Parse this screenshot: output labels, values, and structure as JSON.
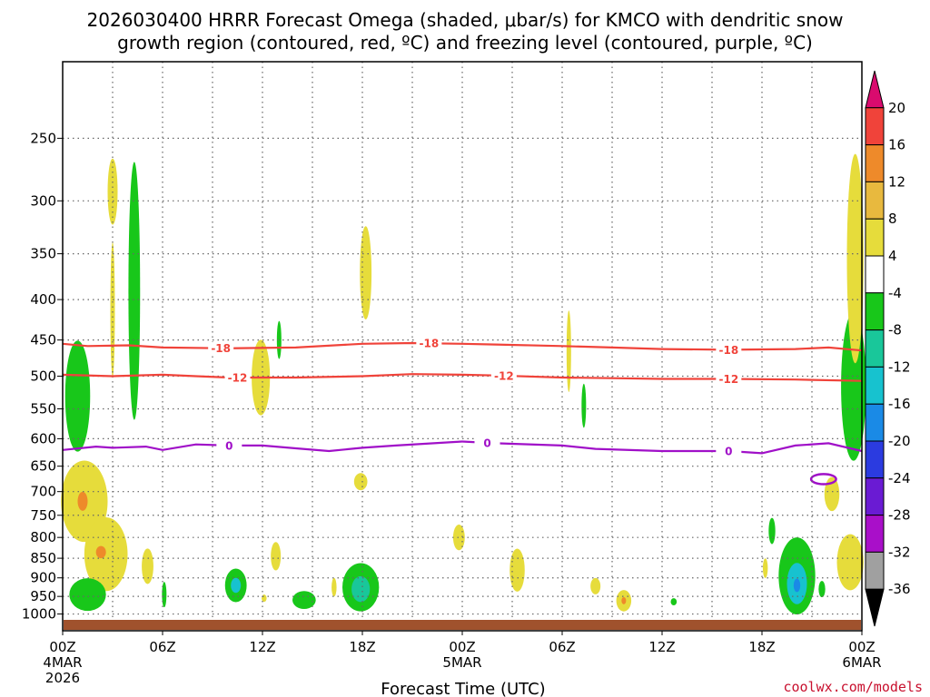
{
  "chart_data": {
    "type": "heatmap",
    "title_line1": "2026030400 HRRR Forecast Omega (shaded, μbar/s) for KMCO with dendritic snow",
    "title_line2": "growth region (contoured, red, ºC) and freezing level (contoured, purple, ºC)",
    "xlabel": "Forecast Time (UTC)",
    "credit": "coolwx.com/models",
    "x_range_hours": [
      0,
      48
    ],
    "y_range_hpa": [
      1050,
      200
    ],
    "y_ticks": [
      250,
      300,
      350,
      400,
      450,
      500,
      550,
      600,
      650,
      700,
      750,
      800,
      850,
      900,
      950,
      1000
    ],
    "x_ticks": [
      {
        "hour": 0,
        "label": "00Z",
        "sub1": "4MAR",
        "sub2": "2026"
      },
      {
        "hour": 6,
        "label": "06Z"
      },
      {
        "hour": 12,
        "label": "12Z"
      },
      {
        "hour": 18,
        "label": "18Z"
      },
      {
        "hour": 24,
        "label": "00Z",
        "sub1": "5MAR"
      },
      {
        "hour": 30,
        "label": "06Z"
      },
      {
        "hour": 36,
        "label": "12Z"
      },
      {
        "hour": 42,
        "label": "18Z"
      },
      {
        "hour": 48,
        "label": "00Z",
        "sub1": "6MAR"
      }
    ],
    "colorbar": {
      "labels": [
        "20",
        "16",
        "12",
        "8",
        "4",
        "-4",
        "-8",
        "-12",
        "-16",
        "-20",
        "-24",
        "-28",
        "-32",
        "-36"
      ],
      "colors": [
        "#d90b6e",
        "#f0433a",
        "#ee8a2a",
        "#e8b93e",
        "#e6dc3b",
        "#ffffff",
        "#18c71a",
        "#19c79a",
        "#17c2cf",
        "#1a8ae6",
        "#2b3be0",
        "#6a1bd3",
        "#a90fc9",
        "#a0a0a0",
        "#000000"
      ]
    },
    "contours": [
      {
        "name": "dgz-18",
        "label": "-18",
        "color": "#f0433a",
        "points": [
          [
            0,
            455
          ],
          [
            1.5,
            458
          ],
          [
            4,
            457
          ],
          [
            6,
            460
          ],
          [
            10,
            461
          ],
          [
            14,
            460
          ],
          [
            18,
            455
          ],
          [
            21,
            454
          ],
          [
            24,
            455
          ],
          [
            26,
            456
          ],
          [
            30,
            458
          ],
          [
            33,
            460
          ],
          [
            36,
            462
          ],
          [
            40,
            463
          ],
          [
            44,
            462
          ],
          [
            46,
            460
          ],
          [
            48,
            464
          ]
        ],
        "label_hours": [
          9.5,
          22,
          40
        ]
      },
      {
        "name": "dgz-12",
        "label": "-12",
        "color": "#f0433a",
        "points": [
          [
            0,
            498
          ],
          [
            3,
            500
          ],
          [
            6,
            498
          ],
          [
            8,
            500
          ],
          [
            10,
            502
          ],
          [
            14,
            502
          ],
          [
            18,
            500
          ],
          [
            21,
            497
          ],
          [
            24,
            498
          ],
          [
            26,
            499
          ],
          [
            30,
            502
          ],
          [
            33,
            503
          ],
          [
            36,
            504
          ],
          [
            40,
            504
          ],
          [
            44,
            505
          ],
          [
            48,
            507
          ]
        ],
        "label_hours": [
          10.5,
          26.5,
          40
        ]
      },
      {
        "name": "freezing-level",
        "label": "0",
        "color": "#a010c8",
        "points": [
          [
            0,
            620
          ],
          [
            2,
            614
          ],
          [
            3,
            616
          ],
          [
            5,
            614
          ],
          [
            6,
            620
          ],
          [
            8,
            610
          ],
          [
            10,
            612
          ],
          [
            12,
            612
          ],
          [
            14,
            617
          ],
          [
            16,
            622
          ],
          [
            18,
            616
          ],
          [
            20,
            612
          ],
          [
            24,
            605
          ],
          [
            26,
            608
          ],
          [
            30,
            612
          ],
          [
            32,
            618
          ],
          [
            36,
            622
          ],
          [
            40,
            622
          ],
          [
            42,
            626
          ],
          [
            44,
            612
          ],
          [
            46,
            608
          ],
          [
            48,
            622
          ]
        ],
        "label_hours": [
          10,
          25.5,
          40
        ]
      }
    ],
    "shaded_regions": [
      {
        "c": "#e6dc3b",
        "h": 3,
        "p": 292,
        "w": 0.3,
        "ph": 28
      },
      {
        "c": "#e6dc3b",
        "h": 3,
        "p": 412,
        "w": 0.12,
        "ph": 80
      },
      {
        "c": "#18c71a",
        "h": 4.3,
        "p": 390,
        "w": 0.35,
        "ph": 140
      },
      {
        "c": "#18c71a",
        "h": 0.9,
        "p": 530,
        "w": 0.75,
        "ph": 85
      },
      {
        "c": "#e6dc3b",
        "h": 18.2,
        "p": 370,
        "w": 0.35,
        "ph": 50
      },
      {
        "c": "#e6dc3b",
        "h": 11.9,
        "p": 502,
        "w": 0.55,
        "ph": 55
      },
      {
        "c": "#18c71a",
        "h": 13,
        "p": 450,
        "w": 0.12,
        "ph": 25
      },
      {
        "c": "#e6dc3b",
        "h": 30.4,
        "p": 465,
        "w": 0.12,
        "ph": 55
      },
      {
        "c": "#18c71a",
        "h": 31.3,
        "p": 545,
        "w": 0.1,
        "ph": 35
      },
      {
        "c": "#18c71a",
        "h": 47.5,
        "p": 515,
        "w": 0.75,
        "ph": 110
      },
      {
        "c": "#e6dc3b",
        "h": 47.6,
        "p": 355,
        "w": 0.5,
        "ph": 105
      },
      {
        "c": "#e6dc3b",
        "h": 1.3,
        "p": 720,
        "w": 1.4,
        "ph": 85
      },
      {
        "c": "#ee8a2a",
        "h": 1.2,
        "p": 720,
        "w": 0.3,
        "ph": 20
      },
      {
        "c": "#e6dc3b",
        "h": 2.6,
        "p": 840,
        "w": 1.3,
        "ph": 90
      },
      {
        "c": "#ee8a2a",
        "h": 2.3,
        "p": 835,
        "w": 0.3,
        "ph": 15
      },
      {
        "c": "#18c71a",
        "h": 1.5,
        "p": 945,
        "w": 1.1,
        "ph": 45
      },
      {
        "c": "#e6dc3b",
        "h": 5.1,
        "p": 870,
        "w": 0.35,
        "ph": 45
      },
      {
        "c": "#18c71a",
        "h": 6.1,
        "p": 945,
        "w": 0.12,
        "ph": 35
      },
      {
        "c": "#18c71a",
        "h": 10.4,
        "p": 920,
        "w": 0.65,
        "ph": 45
      },
      {
        "c": "#17c2cf",
        "h": 10.4,
        "p": 920,
        "w": 0.3,
        "ph": 20
      },
      {
        "c": "#e6dc3b",
        "h": 12.1,
        "p": 955,
        "w": 0.15,
        "ph": 10
      },
      {
        "c": "#e6dc3b",
        "h": 12.8,
        "p": 845,
        "w": 0.3,
        "ph": 35
      },
      {
        "c": "#18c71a",
        "h": 14.5,
        "p": 960,
        "w": 0.7,
        "ph": 25
      },
      {
        "c": "#e6dc3b",
        "h": 16.3,
        "p": 925,
        "w": 0.15,
        "ph": 25
      },
      {
        "c": "#18c71a",
        "h": 17.9,
        "p": 925,
        "w": 1.1,
        "ph": 65
      },
      {
        "c": "#19c79a",
        "h": 17.9,
        "p": 930,
        "w": 0.55,
        "ph": 35
      },
      {
        "c": "#e6dc3b",
        "h": 17.9,
        "p": 680,
        "w": 0.4,
        "ph": 17
      },
      {
        "c": "#e6dc3b",
        "h": 23.8,
        "p": 800,
        "w": 0.35,
        "ph": 30
      },
      {
        "c": "#e6dc3b",
        "h": 27.3,
        "p": 880,
        "w": 0.45,
        "ph": 55
      },
      {
        "c": "#e6dc3b",
        "h": 32,
        "p": 922,
        "w": 0.3,
        "ph": 22
      },
      {
        "c": "#e6dc3b",
        "h": 33.7,
        "p": 962,
        "w": 0.45,
        "ph": 30
      },
      {
        "c": "#ee8a2a",
        "h": 33.7,
        "p": 962,
        "w": 0.12,
        "ph": 10
      },
      {
        "c": "#18c71a",
        "h": 36.7,
        "p": 965,
        "w": 0.18,
        "ph": 10
      },
      {
        "c": "#18c71a",
        "h": 42.6,
        "p": 785,
        "w": 0.2,
        "ph": 30
      },
      {
        "c": "#e6dc3b",
        "h": 42.2,
        "p": 875,
        "w": 0.15,
        "ph": 25
      },
      {
        "c": "#18c71a",
        "h": 44.1,
        "p": 895,
        "w": 1.1,
        "ph": 100
      },
      {
        "c": "#17c2cf",
        "h": 44.1,
        "p": 915,
        "w": 0.6,
        "ph": 55
      },
      {
        "c": "#1a8ae6",
        "h": 44.1,
        "p": 920,
        "w": 0.2,
        "ph": 18
      },
      {
        "c": "#18c71a",
        "h": 45.6,
        "p": 930,
        "w": 0.2,
        "ph": 22
      },
      {
        "c": "#e6dc3b",
        "h": 46.2,
        "p": 705,
        "w": 0.45,
        "ph": 35
      },
      {
        "c": "#e6dc3b",
        "h": 47.3,
        "p": 860,
        "w": 0.8,
        "ph": 70
      }
    ],
    "freezing_loop": {
      "h": 45.7,
      "p": 675,
      "w": 0.75,
      "ph": 10
    }
  }
}
